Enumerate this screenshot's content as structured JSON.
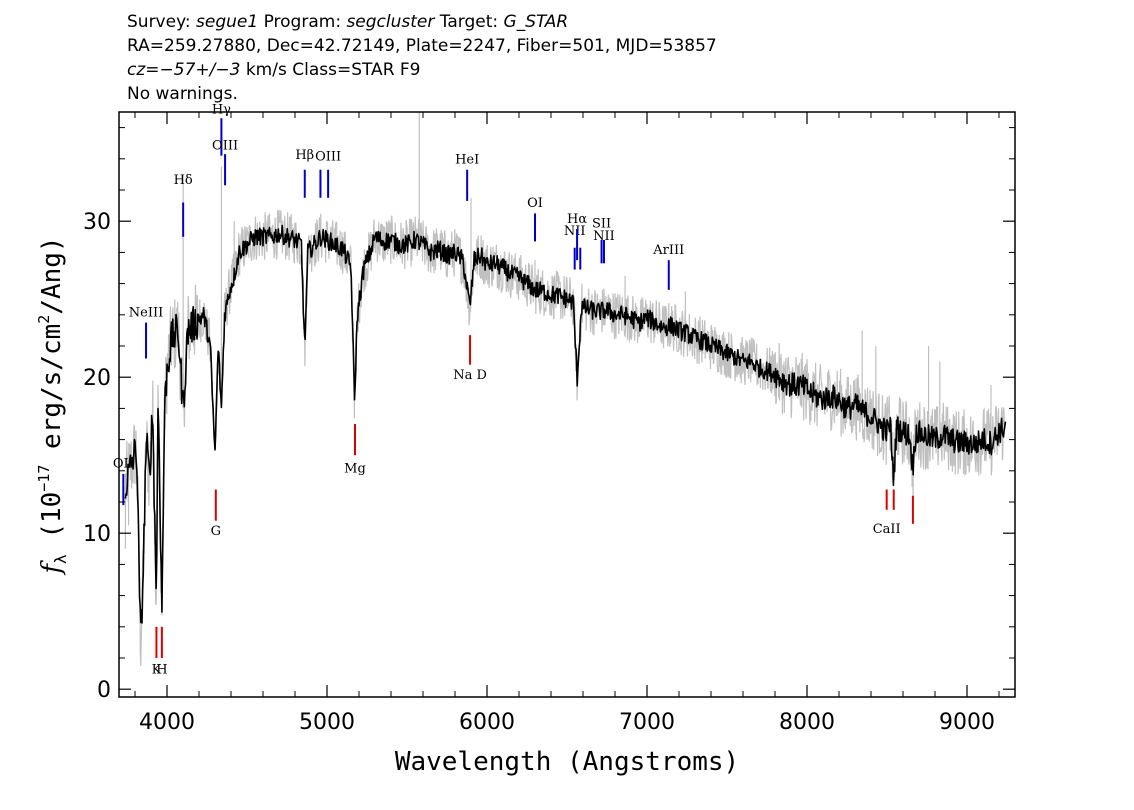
{
  "header": {
    "survey_label": "Survey: ",
    "survey_value": "segue1",
    "program_label": " Program: ",
    "program_value": "segcluster",
    "target_label": " Target: ",
    "target_value": "G_STAR",
    "line2": "RA=259.27880, Dec=42.72149, Plate=2247, Fiber=501, MJD=53857",
    "cz_label": "cz",
    "cz_value": "=−57+/−3",
    "cz_rest": " km/s Class=STAR F9",
    "line4": "No warnings."
  },
  "chart_data": {
    "type": "line",
    "xlabel": "Wavelength (Angstroms)",
    "ylabel_parts": {
      "f": "f",
      "sub": "λ",
      "pre": " (10",
      "exp1": "−17",
      "mid": " erg/s/cm",
      "exp2": "2",
      "post": "/Ang)"
    },
    "xlim": [
      3700,
      9300
    ],
    "ylim": [
      -0.5,
      37
    ],
    "x_ticks": [
      4000,
      5000,
      6000,
      7000,
      8000,
      9000
    ],
    "y_ticks": [
      0,
      10,
      20,
      30
    ],
    "colors": {
      "flux": "#000000",
      "error": "#c0c0c0",
      "emission": "#0000cc",
      "absorption": "#dd0000"
    },
    "spectrum_nodes": [
      [
        3740,
        13.0
      ],
      [
        3780,
        14.5
      ],
      [
        3810,
        15.5
      ],
      [
        3825,
        8.0
      ],
      [
        3835,
        3.0
      ],
      [
        3850,
        7.0
      ],
      [
        3870,
        16.0
      ],
      [
        3890,
        13.5
      ],
      [
        3910,
        18.0
      ],
      [
        3933,
        6.0
      ],
      [
        3945,
        19.0
      ],
      [
        3968,
        5.0
      ],
      [
        3985,
        18.0
      ],
      [
        4000,
        20.5
      ],
      [
        4030,
        22.5
      ],
      [
        4070,
        23.0
      ],
      [
        4101,
        18.0
      ],
      [
        4130,
        23.0
      ],
      [
        4180,
        23.5
      ],
      [
        4230,
        24.0
      ],
      [
        4270,
        22.0
      ],
      [
        4300,
        15.0
      ],
      [
        4320,
        22.0
      ],
      [
        4340,
        18.0
      ],
      [
        4360,
        24.0
      ],
      [
        4390,
        25.5
      ],
      [
        4420,
        26.5
      ],
      [
        4450,
        28.0
      ],
      [
        4500,
        28.5
      ],
      [
        4550,
        29.0
      ],
      [
        4600,
        29.0
      ],
      [
        4650,
        29.0
      ],
      [
        4700,
        29.2
      ],
      [
        4750,
        29.0
      ],
      [
        4800,
        28.8
      ],
      [
        4840,
        28.5
      ],
      [
        4861,
        21.8
      ],
      [
        4880,
        28.0
      ],
      [
        4920,
        28.5
      ],
      [
        4960,
        29.0
      ],
      [
        5000,
        28.8
      ],
      [
        5050,
        28.5
      ],
      [
        5100,
        28.2
      ],
      [
        5150,
        27.0
      ],
      [
        5172,
        18.5
      ],
      [
        5190,
        24.0
      ],
      [
        5230,
        27.0
      ],
      [
        5270,
        28.0
      ],
      [
        5300,
        29.0
      ],
      [
        5350,
        28.7
      ],
      [
        5400,
        28.8
      ],
      [
        5450,
        28.5
      ],
      [
        5500,
        28.5
      ],
      [
        5550,
        28.8
      ],
      [
        5600,
        28.5
      ],
      [
        5650,
        28.0
      ],
      [
        5700,
        28.2
      ],
      [
        5750,
        27.8
      ],
      [
        5800,
        28.0
      ],
      [
        5850,
        27.5
      ],
      [
        5893,
        24.5
      ],
      [
        5920,
        27.5
      ],
      [
        5960,
        27.8
      ],
      [
        6000,
        27.2
      ],
      [
        6050,
        27.3
      ],
      [
        6100,
        27.0
      ],
      [
        6150,
        26.6
      ],
      [
        6200,
        26.4
      ],
      [
        6250,
        26.0
      ],
      [
        6300,
        25.6
      ],
      [
        6350,
        25.5
      ],
      [
        6400,
        25.3
      ],
      [
        6450,
        25.2
      ],
      [
        6500,
        25.0
      ],
      [
        6540,
        24.8
      ],
      [
        6563,
        19.8
      ],
      [
        6590,
        24.5
      ],
      [
        6650,
        24.3
      ],
      [
        6700,
        24.2
      ],
      [
        6750,
        24.3
      ],
      [
        6800,
        24.0
      ],
      [
        6850,
        24.0
      ],
      [
        6900,
        23.8
      ],
      [
        6950,
        23.5
      ],
      [
        7000,
        23.8
      ],
      [
        7050,
        23.5
      ],
      [
        7100,
        23.2
      ],
      [
        7150,
        23.3
      ],
      [
        7200,
        23.0
      ],
      [
        7250,
        22.8
      ],
      [
        7300,
        22.5
      ],
      [
        7350,
        22.3
      ],
      [
        7400,
        22.0
      ],
      [
        7450,
        21.8
      ],
      [
        7500,
        21.5
      ],
      [
        7550,
        21.3
      ],
      [
        7600,
        21.0
      ],
      [
        7650,
        21.0
      ],
      [
        7700,
        20.6
      ],
      [
        7750,
        20.4
      ],
      [
        7800,
        20.2
      ],
      [
        7850,
        19.8
      ],
      [
        7900,
        19.5
      ],
      [
        7950,
        19.5
      ],
      [
        8000,
        19.2
      ],
      [
        8050,
        18.8
      ],
      [
        8100,
        18.6
      ],
      [
        8150,
        18.8
      ],
      [
        8200,
        18.5
      ],
      [
        8250,
        18.0
      ],
      [
        8300,
        18.2
      ],
      [
        8350,
        17.8
      ],
      [
        8400,
        17.5
      ],
      [
        8450,
        17.0
      ],
      [
        8498,
        16.5
      ],
      [
        8520,
        17.0
      ],
      [
        8542,
        13.5
      ],
      [
        8560,
        16.8
      ],
      [
        8600,
        16.5
      ],
      [
        8640,
        16.3
      ],
      [
        8662,
        14.2
      ],
      [
        8680,
        16.5
      ],
      [
        8750,
        16.2
      ],
      [
        8800,
        16.0
      ],
      [
        8850,
        16.3
      ],
      [
        8900,
        16.0
      ],
      [
        8950,
        15.8
      ],
      [
        9000,
        15.8
      ],
      [
        9050,
        15.7
      ],
      [
        9100,
        16.0
      ],
      [
        9150,
        15.8
      ],
      [
        9200,
        16.5
      ],
      [
        9240,
        16.8
      ]
    ],
    "spikes": [
      [
        3740,
        9.0
      ],
      [
        3760,
        10.5
      ],
      [
        4101,
        33.0
      ],
      [
        4340,
        33.5
      ],
      [
        4420,
        30.0
      ],
      [
        5577,
        37.0
      ],
      [
        5900,
        31.5
      ],
      [
        6300,
        27.5
      ],
      [
        6863,
        26.5
      ],
      [
        7240,
        25.5
      ],
      [
        8345,
        23.0
      ],
      [
        8430,
        22.0
      ],
      [
        8760,
        22.0
      ],
      [
        8830,
        21.0
      ],
      [
        9150,
        19.5
      ]
    ],
    "emission_lines": [
      {
        "label": "OII",
        "wave": 3727,
        "y0": 11.8,
        "y1": 13.8,
        "label_y": 14.2
      },
      {
        "label": "NeIII",
        "wave": 3869,
        "y0": 21.2,
        "y1": 23.5,
        "label_y": 23.9
      },
      {
        "label": "Hδ",
        "wave": 4101,
        "y0": 29.0,
        "y1": 31.2,
        "label_y": 32.4
      },
      {
        "label": "Hγ",
        "wave": 4340,
        "y0": 34.2,
        "y1": 36.6,
        "label_y": 36.9
      },
      {
        "label": "OIII",
        "wave": 4363,
        "y0": 32.3,
        "y1": 34.3,
        "label_y": 34.6
      },
      {
        "label": "Hβ",
        "wave": 4861,
        "y0": 31.5,
        "y1": 33.3,
        "label_y": 34.0
      },
      {
        "label": "OIII",
        "wave": 4959,
        "y0": 31.5,
        "y1": 33.3,
        "label_y": 0
      },
      {
        "label": "OIII",
        "wave": 5007,
        "y0": 31.5,
        "y1": 33.3,
        "label_y": 33.9
      },
      {
        "label": "HeI",
        "wave": 5876,
        "y0": 31.3,
        "y1": 33.3,
        "label_y": 33.7
      },
      {
        "label": "OI",
        "wave": 6300,
        "y0": 28.7,
        "y1": 30.5,
        "label_y": 30.9
      },
      {
        "label": "NII",
        "wave": 6548,
        "y0": 26.9,
        "y1": 28.3,
        "label_y": 29.1
      },
      {
        "label": "Hα",
        "wave": 6563,
        "y0": 27.5,
        "y1": 29.5,
        "label_y": 29.9
      },
      {
        "label": "NII",
        "wave": 6583,
        "y0": 26.9,
        "y1": 28.3,
        "label_y": 0
      },
      {
        "label": "SII",
        "wave": 6716,
        "y0": 27.3,
        "y1": 28.8,
        "label_y": 29.6
      },
      {
        "label": "NII",
        "wave": 6731,
        "y0": 27.3,
        "y1": 28.8,
        "label_y": 28.8
      },
      {
        "label": "ArIII",
        "wave": 7136,
        "y0": 25.6,
        "y1": 27.5,
        "label_y": 27.9
      }
    ],
    "absorption_lines": [
      {
        "label": "K",
        "wave": 3934,
        "y0": 2.0,
        "y1": 4.0,
        "label_y": 1.0
      },
      {
        "label": "H",
        "wave": 3968,
        "y0": 2.0,
        "y1": 4.0,
        "label_y": 1.0
      },
      {
        "label": "G",
        "wave": 4305,
        "y0": 10.8,
        "y1": 12.8,
        "label_y": 9.9
      },
      {
        "label": "Mg",
        "wave": 5175,
        "y0": 15.0,
        "y1": 17.0,
        "label_y": 13.9
      },
      {
        "label": "Na D",
        "wave": 5894,
        "y0": 20.8,
        "y1": 22.7,
        "label_y": 19.9
      },
      {
        "label": "CaII",
        "wave": 8498,
        "y0": 11.5,
        "y1": 12.8,
        "label_y": 10.0
      },
      {
        "label": "",
        "wave": 8542,
        "y0": 11.5,
        "y1": 12.8,
        "label_y": 0
      },
      {
        "label": "",
        "wave": 8662,
        "y0": 10.6,
        "y1": 12.4,
        "label_y": 0
      }
    ]
  }
}
